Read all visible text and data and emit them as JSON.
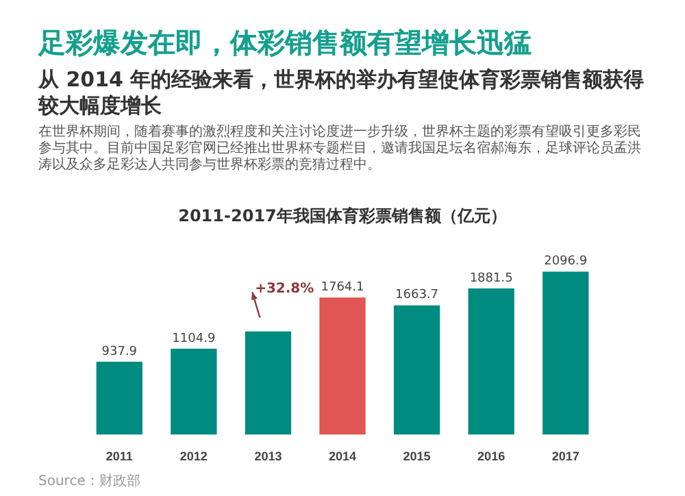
{
  "chart_data": {
    "type": "bar",
    "title": "2011-2017年我国体育彩票销售额（亿元）",
    "annotations": [
      "足彩爆发在即，体彩销售额有望增长迅猛",
      "从 2014 年的经验来看，世界杯的举办有望使体育彩票销售额获得较大幅度增长",
      "在世界杯期间，随着赛事的激烈程度和关注讨论度进一步升级，世界杯主题的彩票有望吸引更多彩民参与其中。目前中国足彩官网已经推出世界杯专题栏目，邀请我国足坛名宿郝海东，足球评论员孟洪涛以及众多足彩达人共同参与世界杯彩票的竞猜过程中。",
      {
        "text": "+32.8%",
        "x": "2014",
        "y": 1764.1
      },
      "Source：财政部"
    ],
    "categories": [
      "2011",
      "2012",
      "2013",
      "2014",
      "2015",
      "2016",
      "2017"
    ],
    "values": [
      937.9,
      1104.9,
      1328,
      1764.1,
      1663.7,
      1881.5,
      2096.9
    ],
    "value_labels": [
      "937.9",
      "1104.9",
      null,
      "1764.1",
      "1663.7",
      "1881.5",
      "2096.9"
    ],
    "colors": [
      "#008b80",
      "#008b80",
      "#008b80",
      "#e05753",
      "#008b80",
      "#008b80",
      "#008b80"
    ]
  }
}
